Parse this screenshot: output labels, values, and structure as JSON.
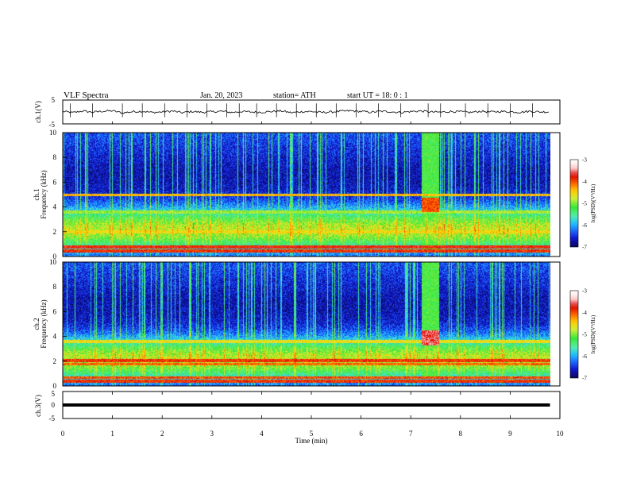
{
  "header": {
    "title": "VLF  Spectra",
    "date": "Jan. 20, 2023",
    "station": "station= ATH",
    "start_ut": "start  UT  =    18: 0   : 1"
  },
  "colors": {
    "background": "#ffffff",
    "axis": "#000000",
    "spectrogram_scale": [
      "#0a0a5a",
      "#1010c8",
      "#1e64ff",
      "#1ec8ff",
      "#5af0a0",
      "#32e632",
      "#c8f03c",
      "#ffd200",
      "#ff6400",
      "#dc0000",
      "#ffdcdc",
      "#ffffff"
    ]
  },
  "chart_data": [
    {
      "type": "line",
      "panel": "ch1-waveform",
      "ylabel": "ch.1(V)",
      "ylim": [
        -5,
        5
      ],
      "yticks": [
        "5",
        "-5"
      ],
      "xlim": [
        0,
        10
      ],
      "series": [
        {
          "x": [
            0,
            0.2,
            0.4,
            0.6,
            0.8,
            1,
            1.2,
            1.4,
            1.6,
            1.8,
            2,
            2.2,
            2.4,
            2.6,
            2.8,
            3,
            3.2,
            3.4,
            3.6,
            3.8,
            4,
            4.2,
            4.4,
            4.6,
            4.8,
            5,
            5.2,
            5.4,
            5.6,
            5.8,
            6,
            6.2,
            6.4,
            6.6,
            6.8,
            7,
            7.2,
            7.4,
            7.6,
            7.8,
            8,
            8.2,
            8.4,
            8.6,
            8.8,
            9,
            9.2,
            9.4,
            9.6,
            9.8
          ],
          "values": [
            0.2,
            -0.3,
            0.4,
            -0.1,
            0.3,
            0.5,
            -0.4,
            0.1,
            0.3,
            -0.2,
            0.0,
            0.4,
            -0.3,
            0.2,
            -0.1,
            0.1,
            0.3,
            -0.2,
            0.2,
            0.0,
            -0.1,
            0.2,
            0.4,
            -0.3,
            0.1,
            0.2,
            -0.2,
            0.0,
            0.3,
            0.5,
            0.2,
            -0.1,
            0.3,
            0.1,
            -0.2,
            0.2,
            0.4,
            0.0,
            -0.1,
            0.2,
            0.1,
            -0.2,
            0.3,
            0.0,
            0.2,
            0.1,
            -0.1,
            0.3,
            0.0,
            0.1
          ]
        }
      ],
      "spike_times": [
        0.15,
        0.6,
        1.2,
        1.6,
        2.05,
        2.5,
        2.9,
        3.3,
        3.55,
        3.9,
        4.3,
        4.7,
        5.1,
        5.5,
        5.9,
        6.35,
        6.8,
        7.35,
        7.6,
        8.1,
        8.55,
        9.0,
        9.45
      ]
    },
    {
      "type": "heatmap",
      "panel": "ch1-spectrogram",
      "ylabel": "Frequency (kHz)",
      "channel_label": "ch.1",
      "xlim": [
        0,
        10
      ],
      "ylim": [
        0,
        10
      ],
      "yticks": [
        "0",
        "2",
        "4",
        "6",
        "8",
        "10"
      ],
      "colorbar": {
        "label": "log(PSD)(V²/Hz)",
        "ticks": [
          "-3",
          "-4",
          "-5",
          "-6",
          "-7"
        ],
        "range": [
          -7,
          -3
        ]
      },
      "bands": [
        {
          "f_khz": 2.0,
          "level": -4.6
        },
        {
          "f_khz": 3.6,
          "level": -4.9
        },
        {
          "f_khz": 5.0,
          "level": -4.4
        },
        {
          "f_khz": 0.8,
          "level": -3.8
        },
        {
          "f_khz": 0.5,
          "level": -3.9
        }
      ],
      "burst": {
        "t_start": 7.35,
        "t_end": 7.7,
        "f_khz": 4.2,
        "level": -4.0
      }
    },
    {
      "type": "heatmap",
      "panel": "ch2-spectrogram",
      "ylabel": "Frequency (kHz)",
      "channel_label": "ch.2",
      "xlim": [
        0,
        10
      ],
      "ylim": [
        0,
        10
      ],
      "yticks": [
        "0",
        "2",
        "4",
        "6",
        "8",
        "10"
      ],
      "colorbar": {
        "label": "log(PSD)(V²/Hz)",
        "ticks": [
          "-3",
          "-4",
          "-5",
          "-6",
          "-7"
        ],
        "range": [
          -7,
          -3
        ]
      },
      "bands": [
        {
          "f_khz": 2.1,
          "level": -3.9
        },
        {
          "f_khz": 1.8,
          "level": -4.1
        },
        {
          "f_khz": 3.6,
          "level": -4.6
        },
        {
          "f_khz": 0.7,
          "level": -4.0
        },
        {
          "f_khz": 0.4,
          "level": -3.9
        }
      ],
      "burst": {
        "t_start": 7.35,
        "t_end": 7.7,
        "f_khz": 3.9,
        "level": -3.6
      }
    },
    {
      "type": "line",
      "panel": "ch3-waveform",
      "ylabel": "ch.3(V)",
      "ylim": [
        -5,
        5
      ],
      "yticks": [
        "5",
        "0",
        "-5"
      ],
      "xlim": [
        0,
        10
      ],
      "xlabel": "Time  (min)",
      "xticks": [
        "0",
        "1",
        "2",
        "3",
        "4",
        "5",
        "6",
        "7",
        "8",
        "9",
        "10"
      ],
      "series": [
        {
          "x": [
            0,
            9.8
          ],
          "values": [
            0,
            0
          ]
        }
      ]
    }
  ]
}
